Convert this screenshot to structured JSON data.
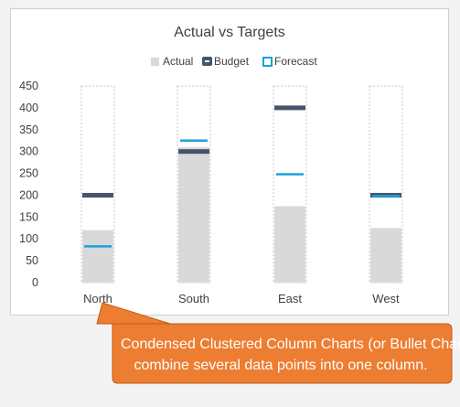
{
  "chart_data": {
    "type": "bar",
    "title": "Actual vs Targets",
    "categories": [
      "North",
      "South",
      "East",
      "West"
    ],
    "ylim": [
      0,
      450
    ],
    "yticks": [
      0,
      50,
      100,
      150,
      200,
      250,
      300,
      350,
      400,
      450
    ],
    "legend_position": "top",
    "grid": false,
    "series": [
      {
        "name": "Actual",
        "kind": "column",
        "color": "#d9d9d9",
        "values": [
          120,
          310,
          175,
          125
        ]
      },
      {
        "name": "Budget",
        "kind": "marker",
        "color": "#44546a",
        "values": [
          200,
          300,
          400,
          200
        ]
      },
      {
        "name": "Forecast",
        "kind": "marker",
        "color": "#1ba1d8",
        "values": [
          83,
          325,
          248,
          198
        ]
      }
    ]
  },
  "callout": {
    "line1": "Condensed Clustered Column Charts (or Bullet Charts)",
    "line2": "combine several data points into one column.",
    "color": "#ed7d31"
  }
}
